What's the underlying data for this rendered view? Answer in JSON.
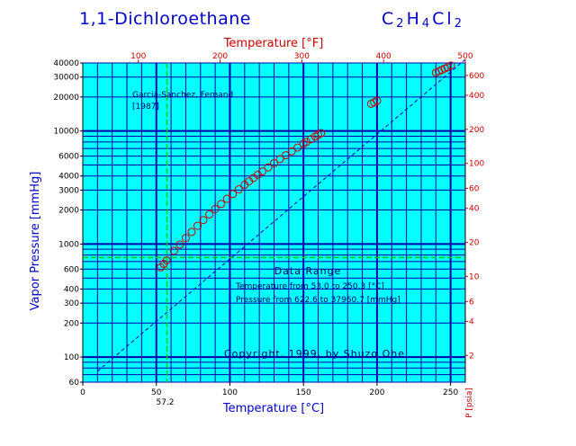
{
  "page": {
    "title": "1,1-Dichloroethane",
    "formula_parts": [
      "C",
      "2",
      "H",
      "4",
      "Cl",
      "2"
    ]
  },
  "chart_data": {
    "type": "scatter",
    "title": "1,1-Dichloroethane",
    "xlabel": "Temperature [°C]",
    "x2label": "Temperature [°F]",
    "ylabel": "Vapor Pressure  [mmHg]",
    "y2label": "P [psia]",
    "xlim": [
      0,
      260
    ],
    "ylim": [
      60,
      40000
    ],
    "y_scale": "log",
    "grid": true,
    "x_ticks": [
      0,
      50,
      100,
      150,
      200,
      250
    ],
    "x_ticks_labels": [
      "0",
      "50",
      "100",
      "150",
      "200",
      "250"
    ],
    "x2_ticks": [
      100,
      200,
      300,
      400,
      500
    ],
    "x2_ticks_labels": [
      "100",
      "200",
      "300",
      "400",
      "500"
    ],
    "y_ticks": [
      60,
      100,
      200,
      300,
      400,
      600,
      1000,
      2000,
      3000,
      4000,
      6000,
      10000,
      20000,
      30000,
      40000
    ],
    "y_ticks_labels": [
      "60",
      "100",
      "200",
      "300",
      "400",
      "600",
      "1000",
      "2000",
      "3000",
      "4000",
      "6000",
      "10000",
      "20000",
      "30000",
      "40000"
    ],
    "y2_ticks": [
      2,
      4,
      6,
      10,
      20,
      40,
      60,
      100,
      200,
      400,
      600
    ],
    "y2_ticks_labels": [
      "2",
      "4",
      "6",
      "10",
      "20",
      "40",
      "60",
      "100",
      "200",
      "400",
      "600"
    ],
    "boiling_point": {
      "x": 57.2,
      "label": "57.2",
      "pressure_mmHg": 760
    },
    "annotations": {
      "reference_line1": "Garcia-Sanchez, Fernand",
      "reference_line2": "[1987]",
      "data_range_title": "Data Range",
      "temperature_range": "Temperature from 53.0 to 250.3 [°C]",
      "pressure_range": "Pressure from 622.6 to 37960.7 [mmHg]",
      "copyright": "Copyright, 1999, by Shuzo Ohe"
    },
    "series": [
      {
        "style": "circle",
        "x": [
          53.0,
          55.0,
          57.0,
          62.0,
          66.0,
          70.0,
          74.0,
          78.0,
          82.0,
          86.0,
          90.0,
          94.0,
          98.0,
          102.0,
          106.0,
          110.0,
          113.0,
          116.0,
          119.0,
          122.0,
          126.0,
          130.0,
          134.0,
          138.0,
          142.0,
          146.0,
          150.0,
          152.0,
          155.0,
          158.0,
          160.0,
          162.0,
          196.0,
          198.0,
          200.0,
          240.0,
          242.0,
          244.0,
          246.0,
          248.0,
          250.3
        ],
        "y": [
          622.6,
          668,
          717,
          870,
          990,
          1130,
          1280,
          1450,
          1630,
          1830,
          2040,
          2260,
          2510,
          2770,
          3050,
          3350,
          3590,
          3840,
          4100,
          4380,
          4770,
          5190,
          5640,
          6110,
          6610,
          7140,
          7700,
          8000,
          8450,
          8920,
          9250,
          9590,
          17400,
          17900,
          18500,
          32800,
          33700,
          34700,
          35700,
          36700,
          37960.7
        ]
      },
      {
        "style": "fit-line",
        "x": [
          10,
          260
        ],
        "y": [
          75,
          43000
        ]
      }
    ]
  }
}
